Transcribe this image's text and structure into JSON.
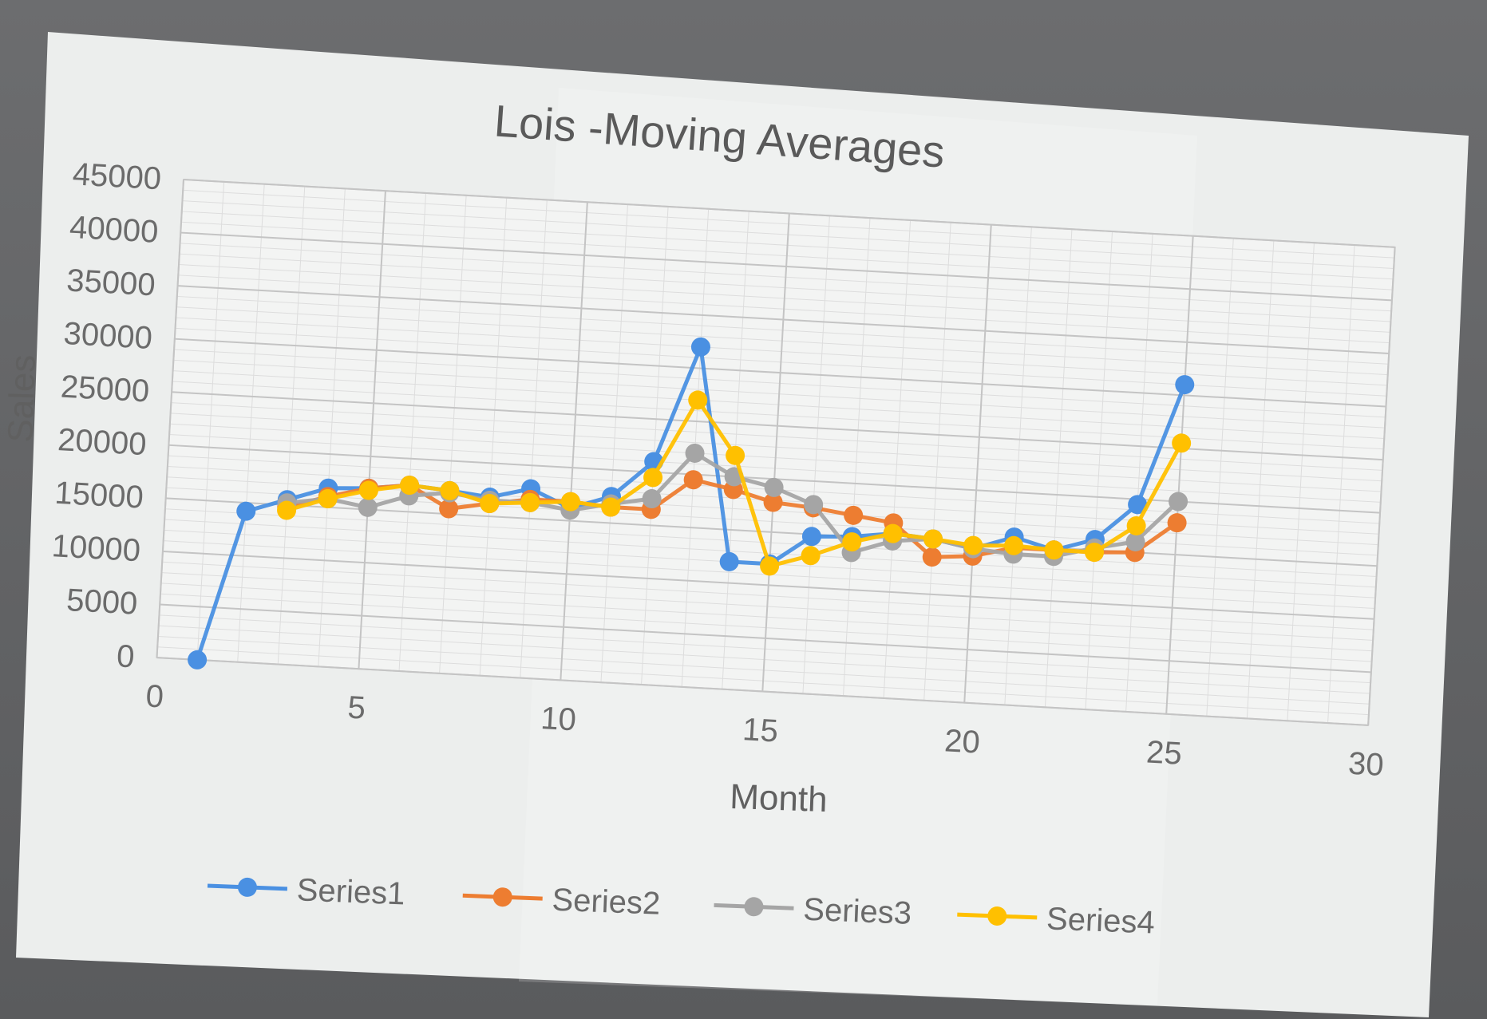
{
  "chart_data": {
    "type": "scatter",
    "title": "Lois -Moving Averages",
    "xlabel": "Month",
    "ylabel": "Sales",
    "xlim": [
      0,
      30
    ],
    "ylim": [
      0,
      45000
    ],
    "xticks": [
      0,
      5,
      10,
      15,
      20,
      25,
      30
    ],
    "yticks": [
      0,
      5000,
      10000,
      15000,
      20000,
      25000,
      30000,
      35000,
      40000,
      45000
    ],
    "grid": true,
    "legend_position": "bottom",
    "series": [
      {
        "name": "Series1",
        "color": "#4a90e2",
        "x": [
          1,
          2,
          3,
          4,
          5,
          6,
          7,
          8,
          9,
          10,
          11,
          12,
          13,
          14,
          15,
          16,
          17,
          18,
          19,
          20,
          21,
          22,
          23,
          24,
          25
        ],
        "y": [
          0,
          14200,
          15500,
          16800,
          17000,
          17500,
          17200,
          16800,
          17800,
          16200,
          17500,
          21000,
          32000,
          12000,
          12000,
          14800,
          15000,
          15500,
          15200,
          14500,
          15800,
          14800,
          16000,
          19500,
          31000
        ]
      },
      {
        "name": "Series2",
        "color": "#ed7d31",
        "x": [
          3,
          4,
          5,
          6,
          7,
          8,
          9,
          10,
          11,
          12,
          13,
          14,
          15,
          16,
          17,
          18,
          19,
          20,
          21,
          22,
          23,
          24,
          25
        ],
        "y": [
          14800,
          16000,
          17000,
          17500,
          15500,
          16200,
          16800,
          16800,
          16500,
          16500,
          19500,
          18800,
          17800,
          17500,
          17000,
          16500,
          13500,
          13800,
          14800,
          14800,
          14800,
          15000,
          18000
        ]
      },
      {
        "name": "Series3",
        "color": "#a5a5a5",
        "x": [
          3,
          4,
          5,
          6,
          7,
          8,
          9,
          10,
          11,
          12,
          13,
          14,
          15,
          16,
          17,
          18,
          19,
          20,
          21,
          22,
          23,
          24,
          25
        ],
        "y": [
          15200,
          15800,
          15200,
          16500,
          17000,
          16500,
          16500,
          16000,
          16800,
          17500,
          22000,
          20000,
          19200,
          17800,
          13500,
          14800,
          15200,
          14500,
          14200,
          14200,
          15200,
          16000,
          20000
        ]
      },
      {
        "name": "Series4",
        "color": "#ffc000",
        "x": [
          3,
          4,
          5,
          6,
          7,
          8,
          9,
          10,
          11,
          12,
          13,
          14,
          15,
          16,
          17,
          18,
          19,
          20,
          21,
          22,
          23,
          24,
          25
        ],
        "y": [
          14500,
          15800,
          16800,
          17500,
          17200,
          16200,
          16500,
          16800,
          16500,
          19500,
          27000,
          22000,
          11800,
          13000,
          14500,
          15500,
          15200,
          14800,
          15000,
          14800,
          14800,
          17500,
          25500
        ]
      }
    ]
  }
}
